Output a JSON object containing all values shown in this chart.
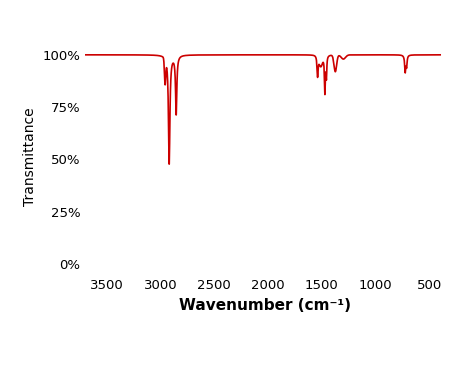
{
  "xlabel": "Wavenumber (cm⁻¹)",
  "ylabel": "Transmittance",
  "line_color": "#cc0000",
  "line_width": 1.2,
  "background_color": "#ffffff",
  "xlim": [
    3700,
    350
  ],
  "ylim": [
    -5,
    108
  ],
  "xticks": [
    3500,
    3000,
    2500,
    2000,
    1500,
    1000,
    500
  ],
  "yticks": [
    0,
    25,
    50,
    75,
    100
  ],
  "ytick_labels": [
    "0%",
    "25%",
    "50%",
    "75%",
    "100%"
  ],
  "xlabel_fontsize": 11,
  "ylabel_fontsize": 10,
  "tick_fontsize": 9.5
}
